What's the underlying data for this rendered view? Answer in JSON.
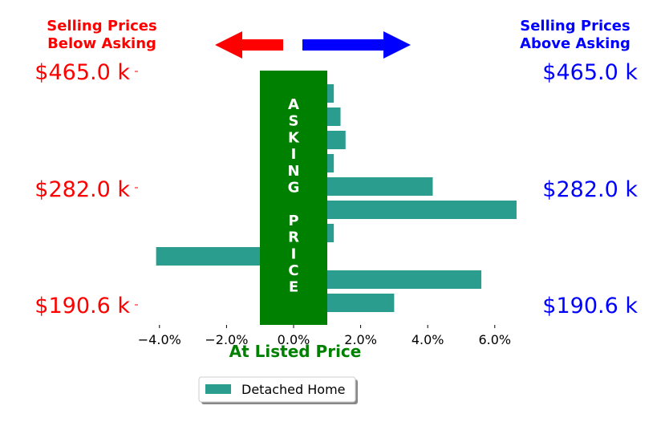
{
  "header": {
    "left_lines": [
      "Selling Prices",
      "Below Asking"
    ],
    "right_lines": [
      "Selling Prices",
      "Above Asking"
    ]
  },
  "price_labels": [
    "$465.0 k",
    "$282.0 k",
    "$190.6 k"
  ],
  "asking_price_letters": [
    "A",
    "S",
    "K",
    "I",
    "N",
    "G",
    "",
    "P",
    "R",
    "I",
    "C",
    "E"
  ],
  "colors": {
    "below": "#ff0000",
    "above": "#0000ff",
    "bar": "#2a9d8f",
    "asking_band": "#008000",
    "at_listed": "#008000"
  },
  "chart_data": {
    "type": "bar",
    "orientation": "horizontal",
    "xlabel": "At Listed Price",
    "xlim": [
      -4.6,
      7.0
    ],
    "xticks": [
      -4.0,
      -2.0,
      0.0,
      2.0,
      4.0,
      6.0
    ],
    "xtick_labels": [
      "−4.0%",
      "−2.0%",
      "0.0%",
      "2.0%",
      "4.0%",
      "6.0%"
    ],
    "legend_position": "bottom-center",
    "series": [
      {
        "name": "Detached Home",
        "values": [
          1.2,
          1.4,
          1.55,
          1.2,
          4.15,
          6.65,
          1.2,
          -4.1,
          5.6,
          3.0
        ]
      }
    ]
  }
}
